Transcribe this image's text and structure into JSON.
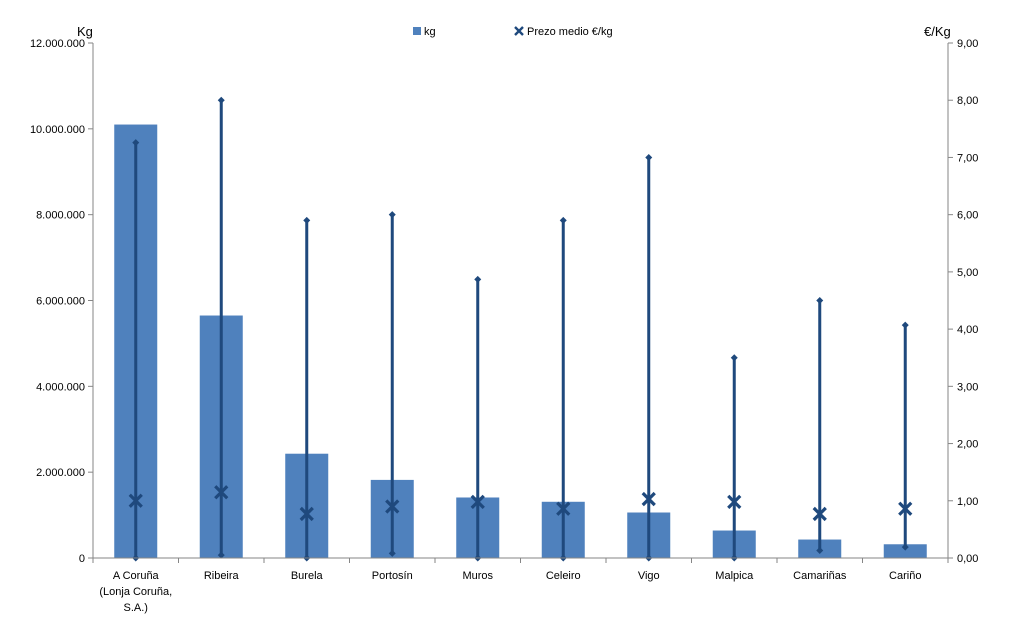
{
  "chart_data": {
    "type": "bar",
    "categories": [
      [
        "A Coruña",
        "(Lonja Coruña,",
        "S.A.)"
      ],
      [
        "Ribeira"
      ],
      [
        "Burela"
      ],
      [
        "Portosín"
      ],
      [
        "Muros"
      ],
      [
        "Celeiro"
      ],
      [
        "Vigo"
      ],
      [
        "Malpica"
      ],
      [
        "Camariñas"
      ],
      [
        "Cariño"
      ]
    ],
    "left_axis": {
      "label": "Kg",
      "ylim": [
        0,
        12000000
      ],
      "ticks": [
        "0",
        "2.000.000",
        "4.000.000",
        "6.000.000",
        "8.000.000",
        "10.000.000",
        "12.000.000"
      ],
      "tick_values": [
        0,
        2000000,
        4000000,
        6000000,
        8000000,
        10000000,
        12000000
      ]
    },
    "right_axis": {
      "label": "€/Kg",
      "ylim": [
        0,
        9
      ],
      "ticks": [
        "0,00",
        "1,00",
        "2,00",
        "3,00",
        "4,00",
        "5,00",
        "6,00",
        "7,00",
        "8,00",
        "9,00"
      ],
      "tick_values": [
        0,
        1,
        2,
        3,
        4,
        5,
        6,
        7,
        8,
        9
      ]
    },
    "series": [
      {
        "name": "kg",
        "axis": "left",
        "kind": "bar",
        "values": [
          10100000,
          5650000,
          2430000,
          1820000,
          1410000,
          1310000,
          1060000,
          640000,
          430000,
          320000
        ]
      },
      {
        "name": "Prezo medio €/kg",
        "axis": "right",
        "kind": "marker",
        "values": [
          1.0,
          1.15,
          0.77,
          0.9,
          0.98,
          0.86,
          1.03,
          0.98,
          0.77,
          0.86
        ]
      }
    ],
    "price_range": {
      "axis": "right",
      "min": [
        0.0,
        0.05,
        0.0,
        0.08,
        0.0,
        0.0,
        0.0,
        0.0,
        0.13,
        0.19
      ],
      "max": [
        7.26,
        8.0,
        5.9,
        6.0,
        4.87,
        5.9,
        7.0,
        3.5,
        4.5,
        4.07
      ]
    },
    "grid": false,
    "legend_position": "top-center",
    "colors": {
      "bar": "#4f81bd",
      "price": "#1f497d",
      "axis": "#868686"
    }
  }
}
